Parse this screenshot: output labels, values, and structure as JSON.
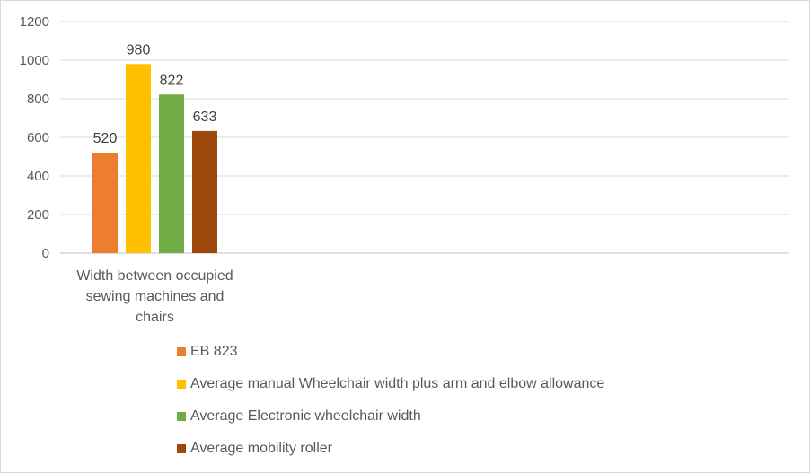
{
  "chart_data": {
    "type": "bar",
    "categories": [
      "Width between occupied sewing machines and chairs"
    ],
    "category_lines": [
      "Width between occupied",
      "sewing machines and",
      "chairs"
    ],
    "series": [
      {
        "name": "EB 823",
        "values": [
          520
        ],
        "color": "#ED7D31"
      },
      {
        "name": "Average manual Wheelchair width plus arm and elbow allowance",
        "values": [
          980
        ],
        "color": "#FFC000"
      },
      {
        "name": "Average Electronic wheelchair width",
        "values": [
          822
        ],
        "color": "#70AD47"
      },
      {
        "name": "Average mobility roller",
        "values": [
          633
        ],
        "color": "#9E480E"
      }
    ],
    "ylim": [
      0,
      1200
    ],
    "yticks": [
      "0",
      "200",
      "400",
      "600",
      "800",
      "1000",
      "1200"
    ],
    "grid": true,
    "legend_position": "bottom",
    "title": "",
    "xlabel": "",
    "ylabel": ""
  }
}
